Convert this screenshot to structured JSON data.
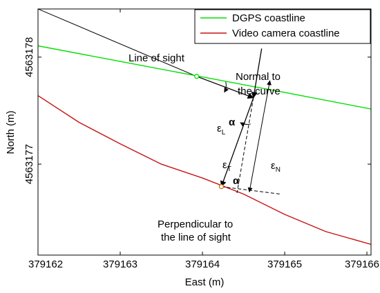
{
  "chart_data": {
    "type": "line",
    "xlabel": "East (m)",
    "ylabel": "North (m)",
    "xlim": [
      379162.0,
      379166.05
    ],
    "ylim": [
      4563176.15,
      4563178.45
    ],
    "xticks": [
      379162,
      379163,
      379164,
      379165,
      379166
    ],
    "xtick_labels": [
      "379162",
      "379163",
      "379164",
      "379165",
      "379166"
    ],
    "yticks": [
      4563177,
      4563178
    ],
    "ytick_labels": [
      "4563177",
      "4563178"
    ],
    "grid": false,
    "legend_position": "top-right",
    "series": [
      {
        "name": "DGPS coastline",
        "color": "#00e000",
        "x": [
          379162.0,
          379163.0,
          379164.0,
          379165.0,
          379166.05
        ],
        "y": [
          4563178.105,
          4563177.96,
          4563177.815,
          4563177.67,
          4563177.515
        ]
      },
      {
        "name": "Video camera coastline",
        "color": "#c81010",
        "x": [
          379162.0,
          379162.5,
          379163.0,
          379163.5,
          379164.0,
          379164.5,
          379165.0,
          379165.5,
          379166.05
        ],
        "y": [
          4563177.64,
          4563177.39,
          4563177.19,
          4563177.0,
          4563176.87,
          4563176.72,
          4563176.53,
          4563176.37,
          4563176.25
        ]
      },
      {
        "name": "Line of sight",
        "color": "#000000",
        "x": [
          379162.0,
          379163.93
        ],
        "y": [
          4563178.45,
          4563177.82
        ]
      }
    ],
    "annotations": {
      "line_of_sight": "Line of sight",
      "normal": [
        "Normal to",
        "the curve"
      ],
      "perpendicular": [
        "Perpendicular to",
        "the line of sight"
      ],
      "alpha": "α",
      "eps": "ε",
      "sub_L": "L",
      "sub_T": "T",
      "sub_N": "N"
    },
    "geometry": {
      "dgps_point": [
        379163.93,
        4563177.82
      ],
      "video_point": [
        379164.23,
        4563176.79
      ],
      "vertex": [
        379164.62,
        4563177.62
      ],
      "normal_top": [
        379164.72,
        4563178.08
      ],
      "normal_end": [
        379164.42,
        4563176.73
      ],
      "perp_end": [
        379164.95,
        4563176.72
      ],
      "eps_n_top": [
        379164.82,
        4563177.78
      ],
      "eps_n_bottom": [
        379164.57,
        4563176.74
      ]
    }
  }
}
